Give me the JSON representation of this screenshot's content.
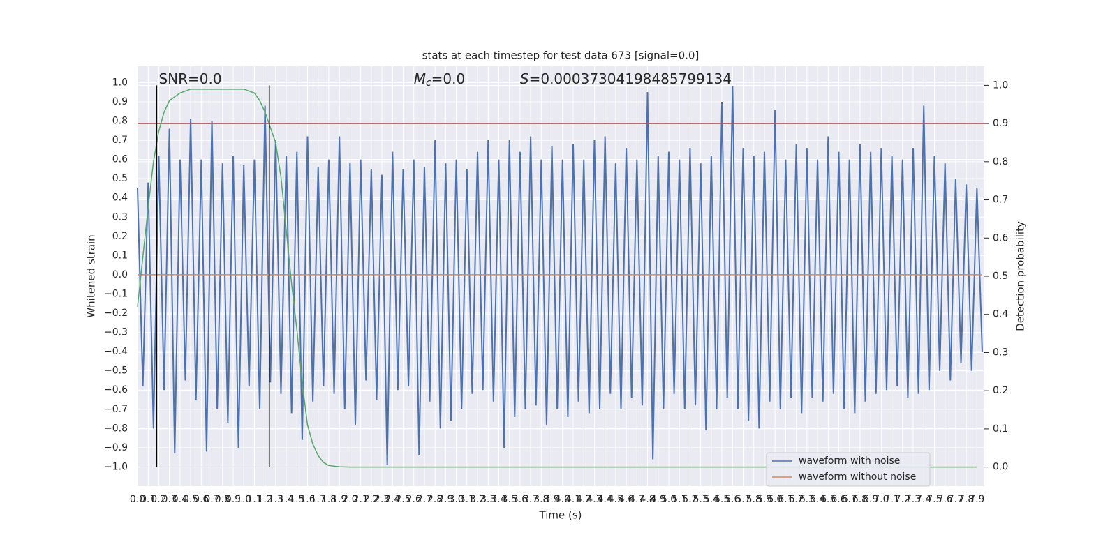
{
  "chart_data": {
    "type": "line",
    "title": "stats at each timestep for test data 673 [signal=0.0]",
    "xlabel": "Time (s)",
    "ylabel": "Whitened strain",
    "y2label": "Detection probability",
    "annotations": [
      {
        "text": "SNR=0.0",
        "x": 0.2
      },
      {
        "symbol": "M",
        "subscript": "c",
        "text": "=0.0",
        "x": 2.6
      },
      {
        "symbol": "S",
        "text": "=0.00037304198485799134",
        "x": 3.6
      }
    ],
    "xlim": [
      0,
      7.97
    ],
    "ylim": [
      -1.1,
      1.085
    ],
    "y2lim": [
      -0.05,
      1.05
    ],
    "xticks": [
      {
        "value": 0,
        "label": "0.0"
      },
      0.1,
      0.2,
      0.3,
      0.4,
      0.5,
      0.6,
      0.7,
      0.8,
      0.9,
      {
        "value": 1,
        "label": "1.0"
      },
      1.1,
      1.2,
      1.3,
      1.4,
      1.5,
      1.6,
      1.7,
      1.8,
      1.9,
      {
        "value": 2,
        "label": "2.0"
      },
      2.1,
      2.2,
      2.3,
      2.4,
      2.5,
      2.6,
      2.7,
      2.8,
      2.9,
      {
        "value": 3,
        "label": "3.0"
      },
      3.1,
      3.2,
      3.3,
      3.4,
      3.5,
      3.6,
      3.7,
      3.8,
      3.9,
      {
        "value": 4,
        "label": "4.0"
      },
      4.1,
      4.2,
      4.3,
      4.4,
      4.5,
      4.6,
      4.7,
      4.8,
      4.9,
      {
        "value": 5,
        "label": "5.0"
      },
      5.1,
      5.2,
      5.3,
      5.4,
      5.5,
      5.6,
      5.7,
      5.8,
      5.9,
      {
        "value": 6,
        "label": "6.0"
      },
      6.1,
      6.2,
      6.3,
      6.4,
      6.5,
      6.6,
      6.7,
      6.8,
      6.9,
      {
        "value": 7,
        "label": "7.0"
      },
      7.1,
      7.2,
      7.3,
      7.4,
      7.5,
      7.6,
      7.7,
      7.8,
      7.9
    ],
    "yticks": [
      {
        "value": -1,
        "label": "−1.0"
      },
      {
        "value": -0.9,
        "label": "−0.9"
      },
      {
        "value": -0.8,
        "label": "−0.8"
      },
      {
        "value": -0.7,
        "label": "−0.7"
      },
      {
        "value": -0.6,
        "label": "−0.6"
      },
      {
        "value": -0.5,
        "label": "−0.5"
      },
      {
        "value": -0.4,
        "label": "−0.4"
      },
      {
        "value": -0.3,
        "label": "−0.3"
      },
      {
        "value": -0.2,
        "label": "−0.2"
      },
      {
        "value": -0.1,
        "label": "−0.1"
      },
      {
        "value": 0,
        "label": "0.0"
      },
      0.1,
      0.2,
      0.3,
      0.4,
      0.5,
      0.6,
      0.7,
      0.8,
      0.9,
      {
        "value": 1,
        "label": "1.0"
      }
    ],
    "y2ticks": [
      {
        "value": 0,
        "label": "0.0"
      },
      0.1,
      0.2,
      0.3,
      0.4,
      0.5,
      0.6,
      0.7,
      0.8,
      0.9,
      {
        "value": 1,
        "label": "1.0"
      }
    ],
    "grid": true,
    "legend": "lower right",
    "series": [
      {
        "name": "waveform with noise",
        "color": "#4c72b0",
        "x": [
          0,
          0.05,
          0.1,
          0.15,
          0.2,
          0.25,
          0.3,
          0.35,
          0.4,
          0.45,
          0.5,
          0.55,
          0.6,
          0.65,
          0.7,
          0.75,
          0.8,
          0.85,
          0.9,
          0.95,
          1,
          1.05,
          1.1,
          1.15,
          1.2,
          1.25,
          1.3,
          1.35,
          1.4,
          1.45,
          1.5,
          1.55,
          1.6,
          1.65,
          1.7,
          1.75,
          1.8,
          1.85,
          1.9,
          1.95,
          2,
          2.05,
          2.1,
          2.15,
          2.2,
          2.25,
          2.3,
          2.35,
          2.4,
          2.45,
          2.5,
          2.55,
          2.6,
          2.65,
          2.7,
          2.75,
          2.8,
          2.85,
          2.9,
          2.95,
          3,
          3.05,
          3.1,
          3.15,
          3.2,
          3.25,
          3.3,
          3.35,
          3.4,
          3.45,
          3.5,
          3.55,
          3.6,
          3.65,
          3.7,
          3.75,
          3.8,
          3.85,
          3.9,
          3.95,
          4,
          4.05,
          4.1,
          4.15,
          4.2,
          4.25,
          4.3,
          4.35,
          4.4,
          4.45,
          4.5,
          4.55,
          4.6,
          4.65,
          4.7,
          4.75,
          4.8,
          4.85,
          4.9,
          4.95,
          5,
          5.05,
          5.1,
          5.15,
          5.2,
          5.25,
          5.3,
          5.35,
          5.4,
          5.45,
          5.5,
          5.55,
          5.6,
          5.65,
          5.7,
          5.75,
          5.8,
          5.85,
          5.9,
          5.95,
          6,
          6.05,
          6.1,
          6.15,
          6.2,
          6.25,
          6.3,
          6.35,
          6.4,
          6.45,
          6.5,
          6.55,
          6.6,
          6.65,
          6.7,
          6.75,
          6.8,
          6.85,
          6.9,
          6.95,
          7,
          7.05,
          7.1,
          7.15,
          7.2,
          7.25,
          7.3,
          7.35,
          7.4,
          7.45,
          7.5,
          7.55,
          7.6,
          7.65,
          7.7,
          7.75,
          7.8,
          7.85,
          7.9,
          7.95
        ],
        "values": [
          0.45,
          -0.58,
          0.48,
          -0.8,
          0.62,
          -0.6,
          0.76,
          -0.93,
          0.6,
          -0.55,
          0.81,
          -0.65,
          0.6,
          -0.92,
          0.8,
          -0.7,
          0.58,
          -0.77,
          0.62,
          -0.9,
          0.57,
          -0.58,
          0.6,
          -0.7,
          0.88,
          -0.56,
          0.7,
          -0.62,
          0.62,
          -0.72,
          0.64,
          -0.86,
          0.72,
          -0.66,
          0.56,
          -0.58,
          0.6,
          -0.62,
          0.72,
          -0.7,
          0.58,
          -0.78,
          0.6,
          -0.55,
          0.55,
          -0.65,
          0.52,
          -0.99,
          0.64,
          -0.6,
          0.55,
          -0.58,
          0.6,
          -0.94,
          0.56,
          -0.66,
          0.7,
          -0.8,
          0.58,
          -0.76,
          0.6,
          -0.7,
          0.55,
          -0.62,
          0.64,
          -0.6,
          0.7,
          -0.66,
          0.6,
          -0.9,
          0.7,
          -0.74,
          0.64,
          -0.7,
          0.72,
          -0.68,
          0.6,
          -0.78,
          0.67,
          -0.7,
          0.6,
          -0.74,
          0.68,
          -0.66,
          0.6,
          -0.72,
          0.7,
          -0.7,
          0.72,
          -0.62,
          0.58,
          -0.7,
          0.66,
          -0.64,
          0.6,
          -0.68,
          0.95,
          -0.96,
          0.62,
          -0.7,
          0.64,
          -0.62,
          0.6,
          -0.7,
          0.66,
          -0.68,
          0.58,
          -0.81,
          0.62,
          -0.7,
          0.9,
          -0.64,
          0.98,
          -0.7,
          0.66,
          -0.76,
          0.62,
          -0.8,
          0.64,
          -0.66,
          0.86,
          -0.7,
          0.6,
          -0.64,
          0.68,
          -0.72,
          0.66,
          -0.64,
          0.6,
          -0.66,
          0.72,
          -0.62,
          0.64,
          -0.7,
          0.6,
          -0.72,
          0.68,
          -0.66,
          0.64,
          -0.62,
          0.66,
          -0.6,
          0.62,
          -0.58,
          0.6,
          -0.64,
          0.66,
          -0.62,
          0.88,
          -0.6,
          0.62,
          -0.5,
          0.58,
          -0.55,
          0.5,
          -0.46,
          0.47,
          -0.5,
          0.45,
          -0.4
        ]
      },
      {
        "name": "waveform without noise",
        "color": "#dd8452",
        "x": [
          0,
          7.95
        ],
        "values": [
          0,
          0
        ]
      }
    ],
    "probability": {
      "color": "#55a868",
      "axis": "y2",
      "x": [
        0,
        0.05,
        0.1,
        0.15,
        0.2,
        0.25,
        0.3,
        0.4,
        0.5,
        0.6,
        0.7,
        0.8,
        0.9,
        1,
        1.1,
        1.15,
        1.2,
        1.25,
        1.3,
        1.35,
        1.4,
        1.45,
        1.5,
        1.55,
        1.6,
        1.65,
        1.7,
        1.75,
        1.8,
        1.9,
        2,
        7.9
      ],
      "values": [
        0.42,
        0.55,
        0.68,
        0.8,
        0.88,
        0.93,
        0.96,
        0.98,
        0.99,
        0.99,
        0.99,
        0.99,
        0.99,
        0.99,
        0.98,
        0.96,
        0.93,
        0.89,
        0.85,
        0.76,
        0.62,
        0.48,
        0.36,
        0.22,
        0.11,
        0.06,
        0.03,
        0.012,
        0.004,
        0.001,
        0,
        0
      ]
    },
    "threshold": {
      "value": 0.9,
      "axis": "y2",
      "color": "#c44e52"
    },
    "vlines": {
      "x": [
        0.18,
        1.24
      ],
      "ymin": 0,
      "ymax": 1,
      "axis": "y2",
      "color": "#000000"
    }
  }
}
